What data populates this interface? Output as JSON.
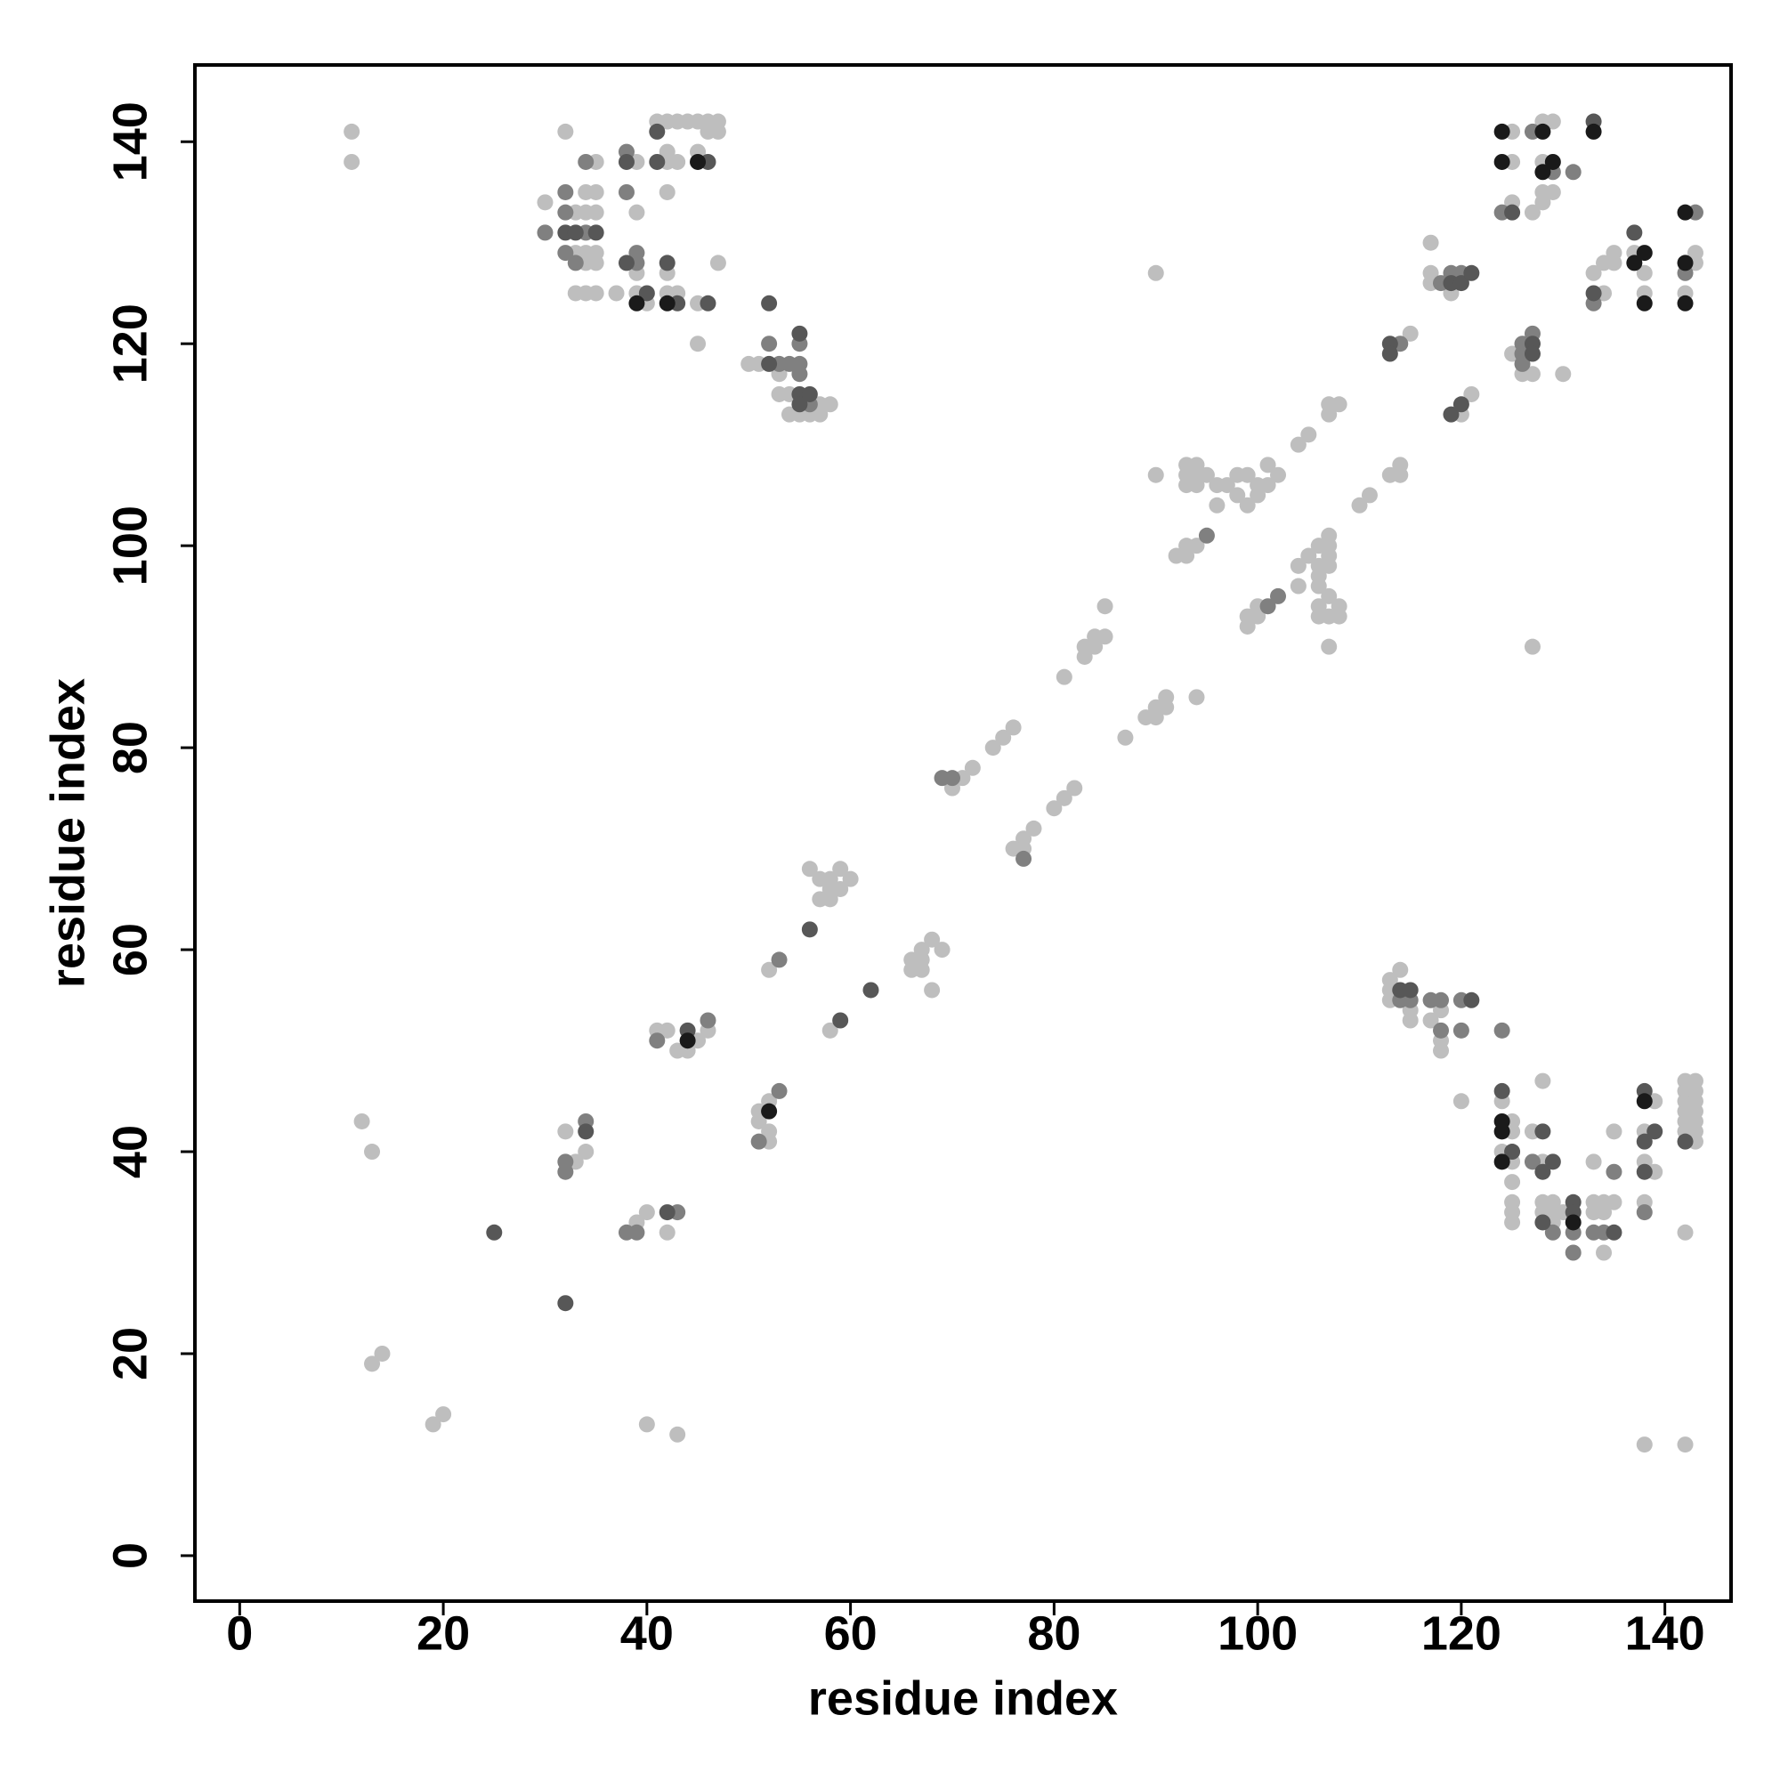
{
  "chart_data": {
    "type": "scatter",
    "xlabel": "residue index",
    "ylabel": "residue index",
    "xlim": [
      -4.4,
      146.5
    ],
    "ylim": [
      -4.5,
      147.6
    ],
    "xticks": [
      0,
      20,
      40,
      60,
      80,
      100,
      120,
      140
    ],
    "yticks": [
      0,
      20,
      40,
      60,
      80,
      100,
      120,
      140
    ],
    "grid": false,
    "series": [
      {
        "color": "#bebebe",
        "x": [
          11,
          11,
          30,
          32,
          33,
          33,
          33,
          34,
          34,
          34,
          34,
          34,
          35,
          35,
          35,
          35,
          35,
          35,
          37,
          39,
          39,
          39,
          39,
          40,
          41,
          42,
          42,
          42,
          42,
          42,
          42,
          43,
          43,
          43,
          44,
          45,
          45,
          45,
          45,
          46,
          46,
          47,
          47,
          47,
          50,
          51,
          53,
          53,
          54,
          54,
          55,
          56,
          57,
          57,
          58,
          56,
          57,
          57,
          58,
          58,
          58,
          59,
          59,
          60,
          52,
          66,
          66,
          67,
          67,
          67,
          68,
          69,
          68,
          58,
          70,
          71,
          72,
          74,
          75,
          76,
          76,
          77,
          77,
          78,
          80,
          81,
          82,
          81,
          83,
          83,
          84,
          84,
          85,
          85,
          87,
          89,
          90,
          90,
          91,
          91,
          94,
          90,
          90,
          92,
          93,
          93,
          94,
          93,
          93,
          93,
          94,
          94,
          94,
          95,
          96,
          96,
          97,
          98,
          98,
          99,
          99,
          100,
          100,
          101,
          101,
          102,
          99,
          99,
          100,
          100,
          104,
          105,
          107,
          107,
          108,
          104,
          104,
          105,
          106,
          106,
          106,
          106,
          106,
          106,
          107,
          107,
          107,
          107,
          107,
          107,
          107,
          108,
          108,
          110,
          111,
          113,
          114,
          114,
          115,
          117,
          117,
          117,
          119,
          120,
          121,
          125,
          126,
          127,
          130,
          127,
          125,
          125,
          125,
          127,
          128,
          128,
          128,
          128,
          129,
          129,
          133,
          134,
          134,
          135,
          135,
          137,
          138,
          138,
          142,
          143,
          143,
          12,
          13,
          13,
          14,
          19,
          20,
          32,
          33,
          34,
          39,
          40,
          42,
          40,
          43,
          41,
          42,
          43,
          44,
          45,
          46,
          51,
          51,
          52,
          52,
          52,
          113,
          113,
          113,
          114,
          115,
          115,
          117,
          118,
          118,
          118,
          120,
          124,
          124,
          125,
          125,
          125,
          125,
          125,
          125,
          125,
          127,
          128,
          128,
          128,
          128,
          129,
          129,
          129,
          130,
          133,
          133,
          133,
          134,
          134,
          134,
          135,
          135,
          138,
          138,
          138,
          139,
          139,
          142,
          142,
          142,
          142,
          142,
          142,
          143,
          143,
          143,
          143,
          143,
          143,
          143,
          142,
          138,
          142
        ],
        "values": [
          141,
          138,
          134,
          141,
          133,
          129,
          125,
          135,
          133,
          129,
          128,
          125,
          138,
          135,
          133,
          129,
          128,
          125,
          125,
          138,
          133,
          127,
          125,
          124,
          142,
          142,
          139,
          138,
          135,
          127,
          125,
          142,
          138,
          125,
          142,
          142,
          139,
          124,
          120,
          142,
          141,
          142,
          141,
          128,
          118,
          118,
          117,
          115,
          115,
          113,
          113,
          113,
          114,
          113,
          114,
          68,
          67,
          65,
          67,
          66,
          65,
          68,
          66,
          67,
          58,
          59,
          58,
          60,
          59,
          58,
          61,
          60,
          56,
          52,
          76,
          77,
          78,
          80,
          81,
          82,
          70,
          71,
          70,
          72,
          74,
          75,
          76,
          87,
          89,
          90,
          90,
          91,
          91,
          94,
          81,
          83,
          83,
          84,
          84,
          85,
          85,
          107,
          127,
          99,
          99,
          100,
          100,
          108,
          107,
          106,
          108,
          107,
          106,
          107,
          104,
          106,
          106,
          107,
          105,
          107,
          104,
          106,
          105,
          108,
          106,
          107,
          92,
          93,
          93,
          94,
          110,
          111,
          113,
          114,
          114,
          98,
          96,
          99,
          100,
          98,
          97,
          96,
          94,
          93,
          101,
          100,
          99,
          98,
          95,
          93,
          90,
          94,
          93,
          104,
          105,
          107,
          108,
          107,
          121,
          130,
          127,
          126,
          125,
          113,
          115,
          119,
          117,
          117,
          117,
          90,
          141,
          138,
          134,
          133,
          142,
          138,
          135,
          134,
          142,
          135,
          127,
          128,
          125,
          129,
          128,
          129,
          127,
          125,
          125,
          129,
          128,
          43,
          40,
          19,
          20,
          13,
          14,
          42,
          39,
          40,
          33,
          34,
          32,
          13,
          12,
          52,
          52,
          50,
          50,
          51,
          52,
          44,
          43,
          45,
          42,
          41,
          57,
          56,
          55,
          58,
          54,
          53,
          53,
          54,
          51,
          50,
          45,
          45,
          40,
          43,
          42,
          39,
          37,
          35,
          34,
          33,
          42,
          47,
          39,
          35,
          34,
          35,
          34,
          33,
          34,
          39,
          35,
          34,
          35,
          34,
          30,
          42,
          35,
          42,
          39,
          35,
          45,
          38,
          47,
          46,
          45,
          44,
          43,
          42,
          47,
          46,
          45,
          44,
          43,
          42,
          41,
          32,
          11,
          11
        ]
      },
      {
        "color": "#808080",
        "x": [
          30,
          32,
          32,
          32,
          33,
          34,
          34,
          38,
          38,
          39,
          39,
          52,
          53,
          54,
          55,
          55,
          55,
          56,
          69,
          70,
          77,
          95,
          101,
          102,
          114,
          118,
          119,
          120,
          126,
          126,
          126,
          127,
          124,
          127,
          129,
          131,
          133,
          143,
          142,
          32,
          32,
          34,
          38,
          39,
          43,
          41,
          46,
          51,
          53,
          53,
          114,
          115,
          117,
          118,
          118,
          120,
          120,
          124,
          127,
          129,
          131,
          131,
          133,
          134,
          135,
          138
        ],
        "values": [
          131,
          135,
          133,
          129,
          128,
          138,
          131,
          139,
          135,
          129,
          128,
          120,
          118,
          118,
          120,
          118,
          117,
          114,
          77,
          77,
          69,
          101,
          94,
          95,
          120,
          126,
          127,
          127,
          120,
          119,
          118,
          121,
          133,
          141,
          137,
          137,
          124,
          133,
          127,
          39,
          38,
          43,
          32,
          32,
          34,
          51,
          53,
          41,
          46,
          59,
          55,
          55,
          55,
          55,
          52,
          52,
          55,
          52,
          39,
          32,
          32,
          30,
          32,
          32,
          38,
          34
        ]
      },
      {
        "color": "#575757",
        "x": [
          32,
          33,
          35,
          38,
          38,
          40,
          41,
          41,
          42,
          43,
          46,
          46,
          52,
          52,
          55,
          55,
          55,
          56,
          56,
          62,
          59,
          113,
          113,
          119,
          120,
          121,
          119,
          120,
          127,
          127,
          125,
          133,
          133,
          137,
          25,
          32,
          34,
          42,
          44,
          114,
          115,
          121,
          124,
          125,
          128,
          128,
          128,
          129,
          131,
          131,
          135,
          138,
          138,
          138,
          139,
          142
        ],
        "values": [
          131,
          131,
          131,
          138,
          128,
          125,
          141,
          138,
          128,
          124,
          138,
          124,
          124,
          118,
          121,
          115,
          114,
          115,
          62,
          56,
          53,
          120,
          119,
          126,
          126,
          127,
          113,
          114,
          120,
          119,
          133,
          142,
          125,
          131,
          32,
          25,
          42,
          34,
          52,
          56,
          56,
          55,
          46,
          40,
          42,
          38,
          33,
          39,
          35,
          34,
          32,
          46,
          41,
          38,
          42,
          41
        ]
      },
      {
        "color": "#1a1a1a",
        "x": [
          39,
          42,
          45,
          124,
          124,
          128,
          128,
          129,
          133,
          137,
          138,
          138,
          142,
          142,
          142,
          44,
          52,
          124,
          124,
          124,
          131,
          138
        ],
        "values": [
          124,
          124,
          138,
          141,
          138,
          141,
          137,
          138,
          141,
          128,
          129,
          124,
          133,
          128,
          124,
          51,
          44,
          43,
          42,
          39,
          33,
          45
        ]
      }
    ]
  }
}
